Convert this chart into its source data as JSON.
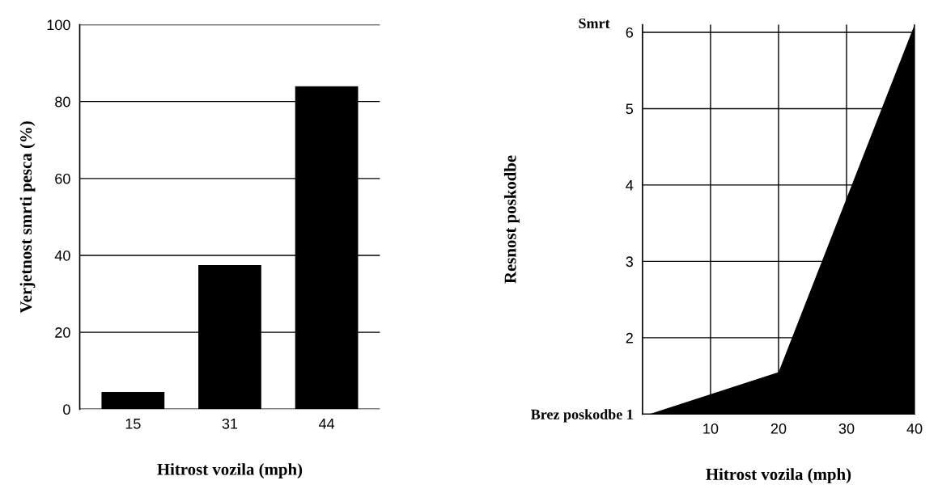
{
  "chart_data": [
    {
      "type": "bar",
      "xlabel": "Hitrost vozila (mph)",
      "ylabel": "Verjetnost smrti pesca (%)",
      "categories": [
        "15",
        "31",
        "44"
      ],
      "values": [
        4.5,
        37.5,
        84
      ],
      "color": "#000000",
      "ylim": [
        0,
        100
      ],
      "yticks": [
        0,
        20,
        40,
        60,
        80,
        100
      ],
      "grid": "y",
      "legend": false
    },
    {
      "type": "area",
      "xlabel": "Hitrost vozila (mph)",
      "ylabel": "Resnost poskodbe",
      "x": [
        1,
        20,
        40
      ],
      "values": [
        1,
        1.55,
        6.1
      ],
      "color": "#000000",
      "xlim": [
        0,
        40
      ],
      "xticks": [
        10,
        20,
        30,
        40
      ],
      "ylim": [
        1,
        6.1
      ],
      "yticks": [
        {
          "value": 1,
          "label": "Brez poskodbe 1"
        },
        2,
        3,
        4,
        5,
        6
      ],
      "annotations": [
        "Smrt"
      ],
      "grid": true,
      "legend": false
    }
  ]
}
